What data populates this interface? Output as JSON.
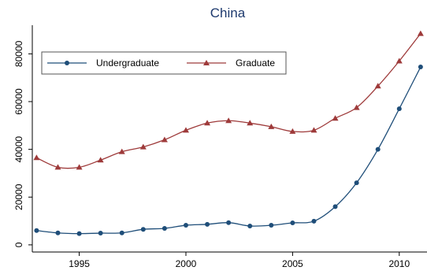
{
  "chart_data": {
    "type": "line",
    "title": "China",
    "xlabel": "",
    "ylabel": "",
    "xlim": [
      1992.8,
      2011.3
    ],
    "ylim": [
      -3000,
      92000
    ],
    "xticks": [
      1995,
      2000,
      2005,
      2010
    ],
    "yticks": [
      0,
      20000,
      40000,
      60000,
      80000
    ],
    "x": [
      1993,
      1994,
      1995,
      1996,
      1997,
      1998,
      1999,
      2000,
      2001,
      2002,
      2003,
      2004,
      2005,
      2006,
      2007,
      2008,
      2009,
      2010,
      2011
    ],
    "series": [
      {
        "name": "Undergraduate",
        "color": "#1f4e79",
        "marker": "circle",
        "values": [
          6000,
          5000,
          4700,
          4900,
          5000,
          6500,
          6900,
          8200,
          8600,
          9300,
          7900,
          8200,
          9200,
          9900,
          16000,
          26000,
          40000,
          57000,
          74500
        ]
      },
      {
        "name": "Graduate",
        "color": "#9e3a3a",
        "marker": "triangle",
        "values": [
          36500,
          32500,
          32500,
          35500,
          39000,
          41000,
          44000,
          48000,
          51000,
          52000,
          51000,
          49500,
          47500,
          48000,
          53000,
          57500,
          66500,
          77000,
          88500
        ]
      }
    ],
    "legend": "top-left",
    "grid": false
  }
}
